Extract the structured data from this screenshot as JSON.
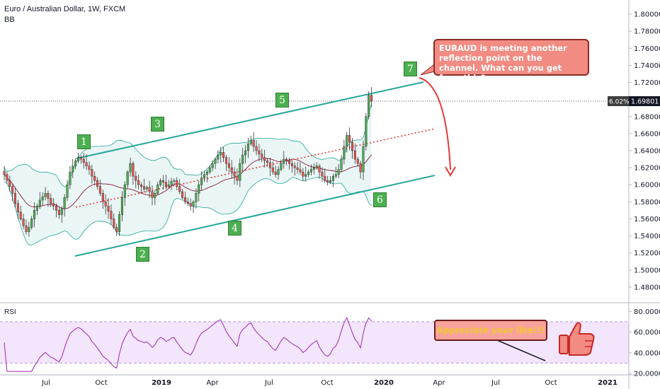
{
  "legend": {
    "symbol": "Euro / Australian Dollar, 1W, FXCM",
    "indicator": "BB"
  },
  "rsi_label": "RSI",
  "price_badge": {
    "pct": "6.02%",
    "price": "1.69801"
  },
  "callout": "EURAUD is meeting another reflection point on the channel. What can you get from this?",
  "appreciate": "Appreciate your like!!!",
  "waves": [
    "1",
    "2",
    "3",
    "4",
    "5",
    "6",
    "7"
  ],
  "colors": {
    "bull": "#4caf50",
    "bear": "#ef5350",
    "channel": "#26a69a",
    "bb": "#26a69a",
    "bb_fill": "#e0f2f1",
    "basis": "#8b1a3a",
    "rsi": "#9c27b0",
    "rsi_bg": "#f3e5fc",
    "accent_red": "#e53935"
  },
  "chart_data": [
    {
      "type": "candlestick",
      "yticks": [
        "1.80000",
        "1.78000",
        "1.76000",
        "1.74000",
        "1.72000",
        "1.70000",
        "1.68000",
        "1.66000",
        "1.64000",
        "1.62000",
        "1.60000",
        "1.58000",
        "1.56000",
        "1.54000",
        "1.52000",
        "1.50000",
        "1.48000"
      ],
      "ylim": [
        1.47,
        1.81
      ],
      "xticks": [
        "Jul",
        "Oct",
        "2019",
        "Apr",
        "Jul",
        "Oct",
        "2020",
        "Apr",
        "Jul",
        "Oct",
        "2021"
      ],
      "current_price": 1.69801,
      "closes": [
        1.612,
        1.605,
        1.598,
        1.59,
        1.578,
        1.568,
        1.56,
        1.552,
        1.545,
        1.55,
        1.56,
        1.57,
        1.575,
        1.582,
        1.586,
        1.59,
        1.584,
        1.578,
        1.575,
        1.57,
        1.565,
        1.572,
        1.585,
        1.6,
        1.615,
        1.622,
        1.628,
        1.632,
        1.63,
        1.626,
        1.622,
        1.618,
        1.61,
        1.605,
        1.598,
        1.59,
        1.58,
        1.575,
        1.569,
        1.56,
        1.55,
        1.545,
        1.565,
        1.585,
        1.6,
        1.615,
        1.625,
        1.61,
        1.605,
        1.6,
        1.598,
        1.595,
        1.597,
        1.592,
        1.585,
        1.59,
        1.6,
        1.605,
        1.603,
        1.598,
        1.6,
        1.604,
        1.605,
        1.598,
        1.592,
        1.585,
        1.58,
        1.578,
        1.575,
        1.58,
        1.59,
        1.6,
        1.608,
        1.612,
        1.615,
        1.62,
        1.625,
        1.63,
        1.635,
        1.638,
        1.632,
        1.625,
        1.62,
        1.615,
        1.61,
        1.605,
        1.625,
        1.635,
        1.64,
        1.648,
        1.652,
        1.645,
        1.64,
        1.636,
        1.632,
        1.628,
        1.626,
        1.62,
        1.615,
        1.612,
        1.618,
        1.625,
        1.63,
        1.628,
        1.625,
        1.622,
        1.62,
        1.618,
        1.615,
        1.61,
        1.612,
        1.615,
        1.618,
        1.62,
        1.622,
        1.615,
        1.61,
        1.605,
        1.603,
        1.605,
        1.61,
        1.612,
        1.618,
        1.63,
        1.645,
        1.658,
        1.65,
        1.64,
        1.63,
        1.625,
        1.615,
        1.645,
        1.68,
        1.705,
        1.698
      ],
      "bb_period": 20,
      "bb_stddev": 2
    },
    {
      "type": "line",
      "title": "RSI",
      "yticks": [
        "80.0000",
        "60.0000",
        "40.0000",
        "20.0000"
      ],
      "ylim": [
        20,
        85
      ],
      "bands": [
        30,
        70
      ]
    }
  ]
}
